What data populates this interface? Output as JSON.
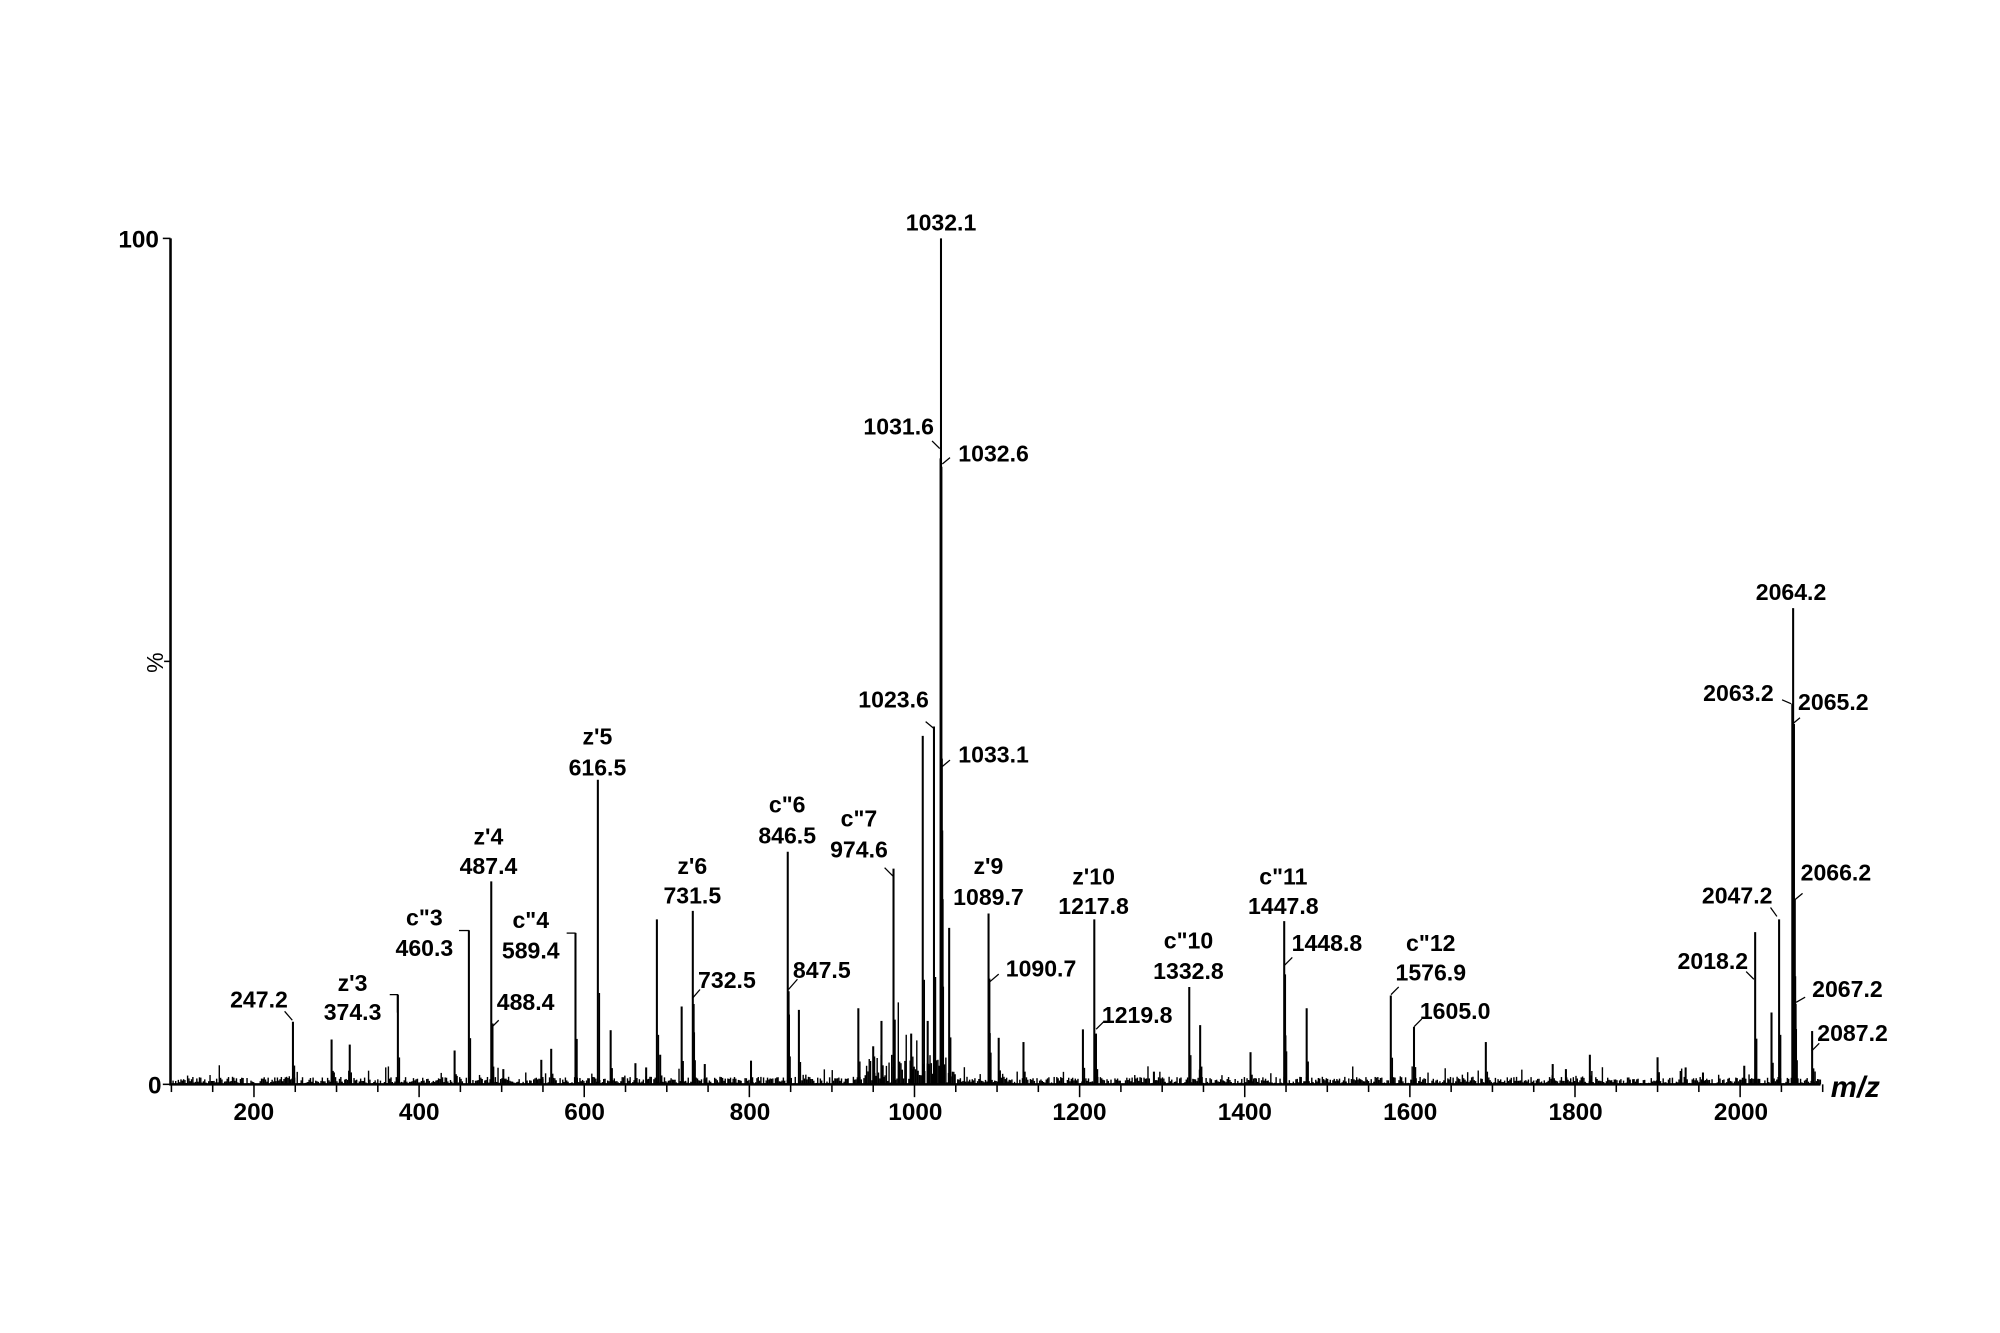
{
  "chart_data": {
    "type": "bar",
    "title": "",
    "xlabel": "m/z",
    "ylabel": "%",
    "xlim": [
      100,
      2100
    ],
    "ylim": [
      0,
      100
    ],
    "x_ticks": [
      200,
      400,
      600,
      800,
      1000,
      1200,
      1400,
      1600,
      1800,
      2000
    ],
    "y_ticks": [
      0,
      100
    ],
    "grid": false,
    "legend": null,
    "peaks": [
      {
        "mz": 247.2,
        "intensity": 7.4,
        "label": "247.2",
        "ion": ""
      },
      {
        "mz": 294,
        "intensity": 5.3,
        "label": "",
        "ion": ""
      },
      {
        "mz": 316,
        "intensity": 4.7,
        "label": "",
        "ion": ""
      },
      {
        "mz": 374.3,
        "intensity": 10.6,
        "label": "374.3",
        "ion": "z'3"
      },
      {
        "mz": 443,
        "intensity": 4.0,
        "label": "",
        "ion": ""
      },
      {
        "mz": 460.3,
        "intensity": 18.2,
        "label": "460.3",
        "ion": "c\"3"
      },
      {
        "mz": 487.4,
        "intensity": 24.0,
        "label": "487.4",
        "ion": "z'4"
      },
      {
        "mz": 488.4,
        "intensity": 7.0,
        "label": "488.4",
        "ion": ""
      },
      {
        "mz": 502,
        "intensity": 1.8,
        "label": "",
        "ion": ""
      },
      {
        "mz": 548,
        "intensity": 2.9,
        "label": "",
        "ion": ""
      },
      {
        "mz": 560,
        "intensity": 4.2,
        "label": "",
        "ion": ""
      },
      {
        "mz": 589.4,
        "intensity": 17.9,
        "label": "589.4",
        "ion": "c\"4"
      },
      {
        "mz": 616.5,
        "intensity": 36.0,
        "label": "616.5",
        "ion": "z'5"
      },
      {
        "mz": 632,
        "intensity": 6.4,
        "label": "",
        "ion": ""
      },
      {
        "mz": 662,
        "intensity": 2.5,
        "label": "",
        "ion": ""
      },
      {
        "mz": 675,
        "intensity": 2.0,
        "label": "",
        "ion": ""
      },
      {
        "mz": 688,
        "intensity": 19.5,
        "label": "",
        "ion": ""
      },
      {
        "mz": 692,
        "intensity": 3.5,
        "label": "",
        "ion": ""
      },
      {
        "mz": 718,
        "intensity": 9.2,
        "label": "",
        "ion": ""
      },
      {
        "mz": 731.5,
        "intensity": 20.5,
        "label": "731.5",
        "ion": "z'6"
      },
      {
        "mz": 732.5,
        "intensity": 9.5,
        "label": "732.5",
        "ion": ""
      },
      {
        "mz": 746,
        "intensity": 2.4,
        "label": "",
        "ion": ""
      },
      {
        "mz": 802,
        "intensity": 2.8,
        "label": "",
        "ion": ""
      },
      {
        "mz": 846.5,
        "intensity": 27.5,
        "label": "846.5",
        "ion": "c\"6"
      },
      {
        "mz": 847.5,
        "intensity": 11.0,
        "label": "847.5",
        "ion": ""
      },
      {
        "mz": 860,
        "intensity": 8.8,
        "label": "",
        "ion": ""
      },
      {
        "mz": 932,
        "intensity": 9.0,
        "label": "",
        "ion": ""
      },
      {
        "mz": 950,
        "intensity": 4.5,
        "label": "",
        "ion": ""
      },
      {
        "mz": 960,
        "intensity": 7.5,
        "label": "",
        "ion": ""
      },
      {
        "mz": 974.6,
        "intensity": 25.5,
        "label": "974.6",
        "ion": "c\"7"
      },
      {
        "mz": 996,
        "intensity": 6.0,
        "label": "",
        "ion": ""
      },
      {
        "mz": 1010,
        "intensity": 41.2,
        "label": "",
        "ion": ""
      },
      {
        "mz": 1016,
        "intensity": 7.5,
        "label": "",
        "ion": ""
      },
      {
        "mz": 1023.6,
        "intensity": 42.3,
        "label": "1023.6",
        "ion": ""
      },
      {
        "mz": 1031.6,
        "intensity": 74.0,
        "label": "1031.6",
        "ion": ""
      },
      {
        "mz": 1032.1,
        "intensity": 100.0,
        "label": "1032.1",
        "ion": ""
      },
      {
        "mz": 1032.6,
        "intensity": 73.0,
        "label": "1032.6",
        "ion": ""
      },
      {
        "mz": 1033.1,
        "intensity": 38.5,
        "label": "1033.1",
        "ion": ""
      },
      {
        "mz": 1042,
        "intensity": 18.5,
        "label": "",
        "ion": ""
      },
      {
        "mz": 1089.7,
        "intensity": 20.2,
        "label": "1089.7",
        "ion": "z'9"
      },
      {
        "mz": 1090.7,
        "intensity": 12.5,
        "label": "1090.7",
        "ion": ""
      },
      {
        "mz": 1102,
        "intensity": 5.5,
        "label": "",
        "ion": ""
      },
      {
        "mz": 1132,
        "intensity": 5.0,
        "label": "",
        "ion": ""
      },
      {
        "mz": 1204,
        "intensity": 6.5,
        "label": "",
        "ion": ""
      },
      {
        "mz": 1217.8,
        "intensity": 19.5,
        "label": "1217.8",
        "ion": "z'10"
      },
      {
        "mz": 1219.8,
        "intensity": 6.0,
        "label": "1219.8",
        "ion": ""
      },
      {
        "mz": 1290,
        "intensity": 1.5,
        "label": "",
        "ion": ""
      },
      {
        "mz": 1332.8,
        "intensity": 11.5,
        "label": "1332.8",
        "ion": "c\"10"
      },
      {
        "mz": 1346,
        "intensity": 7.0,
        "label": "",
        "ion": ""
      },
      {
        "mz": 1407,
        "intensity": 3.8,
        "label": "",
        "ion": ""
      },
      {
        "mz": 1447.8,
        "intensity": 19.3,
        "label": "1447.8",
        "ion": "c\"11"
      },
      {
        "mz": 1448.8,
        "intensity": 13.0,
        "label": "1448.8",
        "ion": ""
      },
      {
        "mz": 1475,
        "intensity": 9.0,
        "label": "",
        "ion": ""
      },
      {
        "mz": 1576.9,
        "intensity": 10.5,
        "label": "1576.9",
        "ion": "c\"12"
      },
      {
        "mz": 1605.0,
        "intensity": 6.8,
        "label": "1605.0",
        "ion": ""
      },
      {
        "mz": 1692,
        "intensity": 5.0,
        "label": "",
        "ion": ""
      },
      {
        "mz": 1773,
        "intensity": 2.4,
        "label": "",
        "ion": ""
      },
      {
        "mz": 1789,
        "intensity": 1.8,
        "label": "",
        "ion": ""
      },
      {
        "mz": 1818,
        "intensity": 3.5,
        "label": "",
        "ion": ""
      },
      {
        "mz": 1900,
        "intensity": 3.2,
        "label": "",
        "ion": ""
      },
      {
        "mz": 1934,
        "intensity": 2.0,
        "label": "",
        "ion": ""
      },
      {
        "mz": 1955,
        "intensity": 1.4,
        "label": "",
        "ion": ""
      },
      {
        "mz": 2005,
        "intensity": 2.2,
        "label": "",
        "ion": ""
      },
      {
        "mz": 2018.2,
        "intensity": 18.0,
        "label": "2018.2",
        "ion": ""
      },
      {
        "mz": 2038,
        "intensity": 8.5,
        "label": "",
        "ion": ""
      },
      {
        "mz": 2047.2,
        "intensity": 19.5,
        "label": "2047.2",
        "ion": ""
      },
      {
        "mz": 2063.2,
        "intensity": 45.0,
        "label": "2063.2",
        "ion": ""
      },
      {
        "mz": 2064.2,
        "intensity": 56.3,
        "label": "2064.2",
        "ion": ""
      },
      {
        "mz": 2065.2,
        "intensity": 42.6,
        "label": "2065.2",
        "ion": ""
      },
      {
        "mz": 2066.2,
        "intensity": 21.8,
        "label": "2066.2",
        "ion": ""
      },
      {
        "mz": 2067.2,
        "intensity": 9.5,
        "label": "2067.2",
        "ion": ""
      },
      {
        "mz": 2087.2,
        "intensity": 6.3,
        "label": "2087.2",
        "ion": ""
      }
    ]
  },
  "axes": {
    "xlabel": "m/z",
    "ylabel": "%",
    "y_top": "100",
    "y_bottom": "0",
    "x_ticks": [
      "200",
      "400",
      "600",
      "800",
      "1000",
      "1200",
      "1400",
      "1600",
      "1800",
      "2000"
    ]
  },
  "annotations": {
    "p247": "247.2",
    "z3_ion": "z'3",
    "z3_mz": "374.3",
    "c3_ion": "c\"3",
    "c3_mz": "460.3",
    "z4_ion": "z'4",
    "z4_mz": "487.4",
    "p488": "488.4",
    "c4_ion": "c\"4",
    "c4_mz": "589.4",
    "z5_ion": "z'5",
    "z5_mz": "616.5",
    "z6_ion": "z'6",
    "z6_mz": "731.5",
    "p732": "732.5",
    "c6_ion": "c\"6",
    "c6_mz": "846.5",
    "p847": "847.5",
    "c7_ion": "c\"7",
    "c7_mz": "974.6",
    "p1023": "1023.6",
    "p1031": "1031.6",
    "p1032": "1032.1",
    "p1032b": "1032.6",
    "p1033": "1033.1",
    "z9_ion": "z'9",
    "z9_mz": "1089.7",
    "p1090": "1090.7",
    "z10_ion": "z'10",
    "z10_mz": "1217.8",
    "p1219": "1219.8",
    "c10_ion": "c\"10",
    "c10_mz": "1332.8",
    "c11_ion": "c\"11",
    "c11_mz": "1447.8",
    "p1448": "1448.8",
    "c12_ion": "c\"12",
    "c12_mz": "1576.9",
    "p1605": "1605.0",
    "p2018": "2018.2",
    "p2047": "2047.2",
    "p2063": "2063.2",
    "p2064": "2064.2",
    "p2065": "2065.2",
    "p2066": "2066.2",
    "p2067": "2067.2",
    "p2087": "2087.2"
  }
}
